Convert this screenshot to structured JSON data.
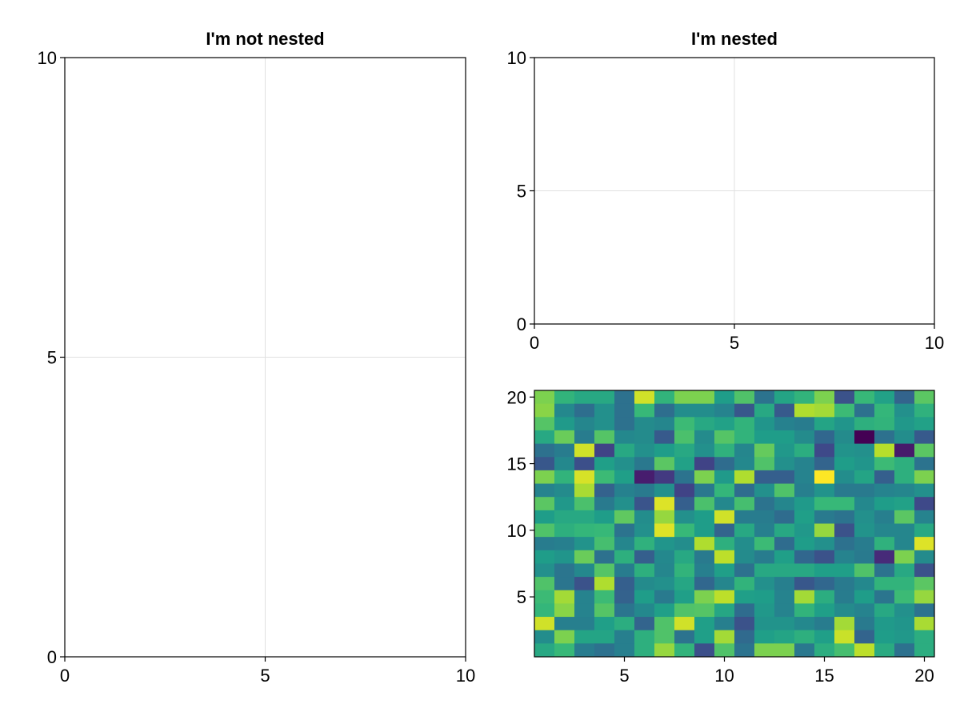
{
  "chart_data": [
    {
      "type": "line",
      "title": "I'm not nested",
      "xlim": [
        0,
        10
      ],
      "ylim": [
        0,
        10
      ],
      "xticks": [
        0,
        5,
        10
      ],
      "yticks": [
        0,
        5,
        10
      ],
      "grid": true,
      "series": []
    },
    {
      "type": "line",
      "title": "I'm nested",
      "xlim": [
        0,
        10
      ],
      "ylim": [
        0,
        10
      ],
      "xticks": [
        0,
        5,
        10
      ],
      "yticks": [
        0,
        5,
        10
      ],
      "grid": true,
      "series": []
    },
    {
      "type": "heatmap",
      "title": "",
      "colormap": "viridis",
      "xlim": [
        0.5,
        20.5
      ],
      "ylim": [
        0.5,
        20.5
      ],
      "xticks": [
        5,
        10,
        15,
        20
      ],
      "yticks": [
        5,
        10,
        15,
        20
      ],
      "x": [
        1,
        2,
        3,
        4,
        5,
        6,
        7,
        8,
        9,
        10,
        11,
        12,
        13,
        14,
        15,
        16,
        17,
        18,
        19,
        20
      ],
      "y_rows_top_to_bottom": [
        20,
        19,
        18,
        17,
        16,
        15,
        14,
        13,
        12,
        11,
        10,
        9,
        8,
        7,
        6,
        5,
        4,
        3,
        2,
        1
      ],
      "values": [
        [
          0.8,
          0.65,
          0.6,
          0.6,
          0.37,
          0.93,
          0.65,
          0.8,
          0.8,
          0.55,
          0.72,
          0.38,
          0.58,
          0.65,
          0.8,
          0.25,
          0.67,
          0.57,
          0.32,
          0.74
        ],
        [
          0.82,
          0.47,
          0.36,
          0.5,
          0.37,
          0.67,
          0.36,
          0.49,
          0.49,
          0.45,
          0.27,
          0.6,
          0.28,
          0.88,
          0.86,
          0.68,
          0.37,
          0.66,
          0.5,
          0.64
        ],
        [
          0.73,
          0.54,
          0.46,
          0.5,
          0.37,
          0.48,
          0.46,
          0.68,
          0.6,
          0.57,
          0.65,
          0.52,
          0.44,
          0.42,
          0.58,
          0.52,
          0.63,
          0.65,
          0.53,
          0.57
        ],
        [
          0.6,
          0.77,
          0.42,
          0.73,
          0.47,
          0.48,
          0.28,
          0.71,
          0.48,
          0.73,
          0.65,
          0.55,
          0.55,
          0.48,
          0.33,
          0.48,
          0.0,
          0.37,
          0.49,
          0.28
        ],
        [
          0.37,
          0.42,
          0.93,
          0.2,
          0.6,
          0.5,
          0.55,
          0.6,
          0.5,
          0.64,
          0.46,
          0.76,
          0.53,
          0.62,
          0.22,
          0.51,
          0.5,
          0.89,
          0.07,
          0.74
        ],
        [
          0.27,
          0.47,
          0.24,
          0.56,
          0.5,
          0.4,
          0.74,
          0.57,
          0.2,
          0.35,
          0.47,
          0.72,
          0.5,
          0.45,
          0.32,
          0.55,
          0.52,
          0.68,
          0.63,
          0.38
        ],
        [
          0.8,
          0.65,
          0.94,
          0.68,
          0.56,
          0.08,
          0.17,
          0.38,
          0.8,
          0.54,
          0.88,
          0.3,
          0.3,
          0.45,
          1.0,
          0.49,
          0.58,
          0.3,
          0.63,
          0.8
        ],
        [
          0.45,
          0.48,
          0.87,
          0.31,
          0.44,
          0.41,
          0.5,
          0.2,
          0.4,
          0.66,
          0.35,
          0.5,
          0.72,
          0.43,
          0.51,
          0.41,
          0.41,
          0.45,
          0.46,
          0.5
        ],
        [
          0.74,
          0.53,
          0.71,
          0.41,
          0.5,
          0.26,
          0.95,
          0.3,
          0.71,
          0.47,
          0.7,
          0.38,
          0.46,
          0.54,
          0.67,
          0.67,
          0.47,
          0.55,
          0.57,
          0.22
        ],
        [
          0.55,
          0.6,
          0.6,
          0.55,
          0.75,
          0.49,
          0.84,
          0.5,
          0.55,
          0.93,
          0.42,
          0.42,
          0.35,
          0.56,
          0.41,
          0.38,
          0.5,
          0.43,
          0.74,
          0.45
        ],
        [
          0.72,
          0.63,
          0.66,
          0.67,
          0.38,
          0.5,
          0.95,
          0.67,
          0.55,
          0.32,
          0.6,
          0.43,
          0.6,
          0.53,
          0.84,
          0.25,
          0.51,
          0.46,
          0.46,
          0.6
        ],
        [
          0.42,
          0.43,
          0.51,
          0.7,
          0.46,
          0.64,
          0.52,
          0.49,
          0.88,
          0.63,
          0.49,
          0.68,
          0.35,
          0.55,
          0.5,
          0.37,
          0.42,
          0.64,
          0.46,
          0.95
        ],
        [
          0.55,
          0.52,
          0.77,
          0.37,
          0.63,
          0.3,
          0.47,
          0.6,
          0.41,
          0.9,
          0.48,
          0.42,
          0.56,
          0.33,
          0.25,
          0.45,
          0.41,
          0.12,
          0.8,
          0.48
        ],
        [
          0.5,
          0.39,
          0.47,
          0.73,
          0.42,
          0.63,
          0.46,
          0.65,
          0.43,
          0.56,
          0.37,
          0.6,
          0.6,
          0.6,
          0.56,
          0.56,
          0.72,
          0.38,
          0.6,
          0.25
        ],
        [
          0.72,
          0.39,
          0.25,
          0.88,
          0.3,
          0.48,
          0.5,
          0.59,
          0.33,
          0.46,
          0.65,
          0.5,
          0.43,
          0.27,
          0.33,
          0.41,
          0.47,
          0.65,
          0.65,
          0.74
        ],
        [
          0.68,
          0.86,
          0.45,
          0.68,
          0.31,
          0.55,
          0.41,
          0.56,
          0.8,
          0.9,
          0.56,
          0.55,
          0.45,
          0.86,
          0.62,
          0.42,
          0.55,
          0.39,
          0.68,
          0.84
        ],
        [
          0.66,
          0.82,
          0.45,
          0.73,
          0.39,
          0.47,
          0.56,
          0.72,
          0.73,
          0.59,
          0.35,
          0.53,
          0.45,
          0.65,
          0.56,
          0.48,
          0.45,
          0.6,
          0.5,
          0.38
        ],
        [
          0.93,
          0.43,
          0.43,
          0.56,
          0.62,
          0.32,
          0.72,
          0.93,
          0.56,
          0.43,
          0.25,
          0.51,
          0.51,
          0.47,
          0.42,
          0.86,
          0.41,
          0.54,
          0.52,
          0.87
        ],
        [
          0.49,
          0.8,
          0.58,
          0.58,
          0.43,
          0.63,
          0.72,
          0.38,
          0.56,
          0.86,
          0.34,
          0.56,
          0.58,
          0.63,
          0.56,
          0.92,
          0.32,
          0.55,
          0.53,
          0.62
        ],
        [
          0.6,
          0.67,
          0.42,
          0.37,
          0.43,
          0.63,
          0.84,
          0.65,
          0.24,
          0.72,
          0.38,
          0.8,
          0.8,
          0.4,
          0.62,
          0.7,
          0.9,
          0.61,
          0.37,
          0.62
        ]
      ]
    }
  ]
}
